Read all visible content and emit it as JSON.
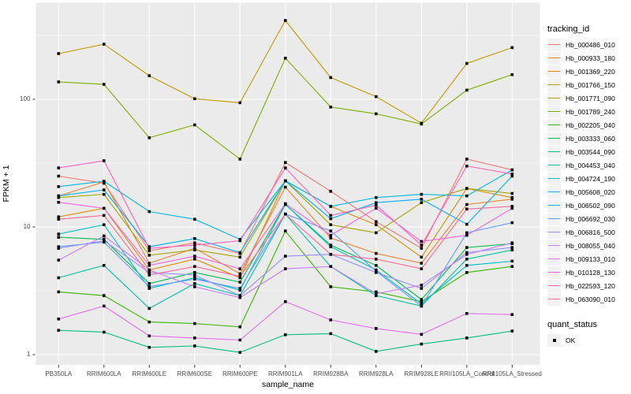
{
  "chart_data": {
    "type": "line",
    "title": "",
    "xlabel": "sample_name",
    "ylabel": "FPKM + 1",
    "y_scale": "log10",
    "y_ticks": [
      1,
      10,
      100
    ],
    "y_minor_gridlines": [
      3.162,
      31.62,
      316.2
    ],
    "ylim": [
      0.83,
      570
    ],
    "grid": "on",
    "panel_background": "#ebebeb",
    "gridline_color": "#ffffff",
    "point_shape": "square",
    "point_color": "#000000",
    "categories": [
      "PB350LA",
      "RRIM600LA",
      "RRIM600LE",
      "RRIM600SE",
      "RRIM600PE",
      "RRIM901LA",
      "RRIM928BA",
      "RRIM928LA",
      "RRIM928LE",
      "RRII105LA_Control",
      "RRII105LA_Stressed"
    ],
    "series": [
      {
        "name": "Hb_000486_010",
        "color": "#F8766D",
        "values": [
          25,
          22,
          6.5,
          7.5,
          6.2,
          32,
          19,
          11,
          6.8,
          34,
          28
        ]
      },
      {
        "name": "Hb_000933_180",
        "color": "#EA8331",
        "values": [
          17.5,
          22.5,
          5.2,
          6.8,
          4.3,
          20.5,
          8.2,
          6.2,
          5.2,
          15,
          16.5
        ]
      },
      {
        "name": "Hb_001369_220",
        "color": "#D89000",
        "values": [
          12,
          14,
          4.6,
          5.6,
          4.0,
          23,
          14.5,
          10.4,
          5.8,
          20,
          17
        ]
      },
      {
        "name": "Hb_001766_150",
        "color": "#C09B00",
        "values": [
          228,
          270,
          153,
          101,
          94,
          414,
          148,
          105,
          65,
          191,
          254
        ]
      },
      {
        "name": "Hb_001771_090",
        "color": "#A3A500",
        "values": [
          17,
          18,
          6.0,
          6.6,
          5.8,
          23,
          10.4,
          9.0,
          15.5,
          20,
          18.3
        ]
      },
      {
        "name": "Hb_001789_240",
        "color": "#7CAE00",
        "values": [
          137,
          131,
          50,
          63,
          34,
          210,
          87,
          77,
          64,
          118,
          156
        ]
      },
      {
        "name": "Hb_002205_040",
        "color": "#39B600",
        "values": [
          3.1,
          2.9,
          1.8,
          1.75,
          1.65,
          9.3,
          3.4,
          3.1,
          2.6,
          4.4,
          4.9
        ]
      },
      {
        "name": "Hb_003333_060",
        "color": "#00BB4E",
        "values": [
          8.3,
          8.0,
          3.6,
          4.4,
          3.7,
          15,
          7.2,
          5.0,
          2.7,
          6.9,
          7.4
        ]
      },
      {
        "name": "Hb_003544_090",
        "color": "#00BF7D",
        "values": [
          1.55,
          1.5,
          1.14,
          1.17,
          1.04,
          1.43,
          1.46,
          1.06,
          1.21,
          1.35,
          1.53
        ]
      },
      {
        "name": "Hb_004453_040",
        "color": "#00C1A3",
        "values": [
          4.0,
          5.0,
          2.3,
          3.6,
          2.9,
          12.6,
          4.9,
          2.9,
          2.4,
          5.6,
          6.6
        ]
      },
      {
        "name": "Hb_004724_190",
        "color": "#00BFC4",
        "values": [
          8.8,
          10.4,
          3.3,
          4.0,
          3.2,
          15,
          7.0,
          4.6,
          2.5,
          5.0,
          5.4
        ]
      },
      {
        "name": "Hb_005608_020",
        "color": "#00BAE0",
        "values": [
          20.7,
          22.8,
          13.2,
          11.5,
          8.0,
          23,
          14.5,
          17,
          18,
          17.5,
          28
        ]
      },
      {
        "name": "Hb_006502_090",
        "color": "#00B0F6",
        "values": [
          17.5,
          19.5,
          7.0,
          8.1,
          6.3,
          23,
          11.6,
          15.5,
          16.5,
          10.5,
          25
        ]
      },
      {
        "name": "Hb_006692_030",
        "color": "#619CFF",
        "values": [
          7.0,
          7.6,
          3.4,
          3.9,
          3.3,
          12.6,
          9.3,
          4.5,
          2.4,
          9.0,
          10.8
        ]
      },
      {
        "name": "Hb_006816_500",
        "color": "#9590FF",
        "values": [
          6.8,
          7.8,
          4.4,
          4.2,
          2.9,
          5.9,
          6.1,
          4.4,
          3.3,
          6.3,
          6.9
        ]
      },
      {
        "name": "Hb_008055_040",
        "color": "#C77CFF",
        "values": [
          5.5,
          8.5,
          4.6,
          3.4,
          2.8,
          4.7,
          4.9,
          3.0,
          3.5,
          6.1,
          7.5
        ]
      },
      {
        "name": "Hb_009133_010",
        "color": "#E76BF3",
        "values": [
          1.9,
          2.4,
          1.4,
          1.35,
          1.3,
          2.6,
          1.87,
          1.6,
          1.44,
          2.1,
          2.06
        ]
      },
      {
        "name": "Hb_010128_130",
        "color": "#FA62DB",
        "values": [
          15.6,
          14,
          5.0,
          5.9,
          4.7,
          15.2,
          8.6,
          14,
          7.7,
          8.6,
          14
        ]
      },
      {
        "name": "Hb_022593_120",
        "color": "#FF62BC",
        "values": [
          29,
          33,
          6.8,
          7.2,
          7.8,
          29,
          12.3,
          14.8,
          7.2,
          30,
          26
        ]
      },
      {
        "name": "Hb_063090_010",
        "color": "#FF6A98",
        "values": [
          11.5,
          12.3,
          4.2,
          4.9,
          4.1,
          12.6,
          6.1,
          5.6,
          4.7,
          13.8,
          14.5
        ]
      }
    ],
    "legend": {
      "color_title": "tracking_id",
      "shape_title": "quant_status",
      "shape_entries": [
        {
          "label": "OK"
        }
      ]
    }
  }
}
